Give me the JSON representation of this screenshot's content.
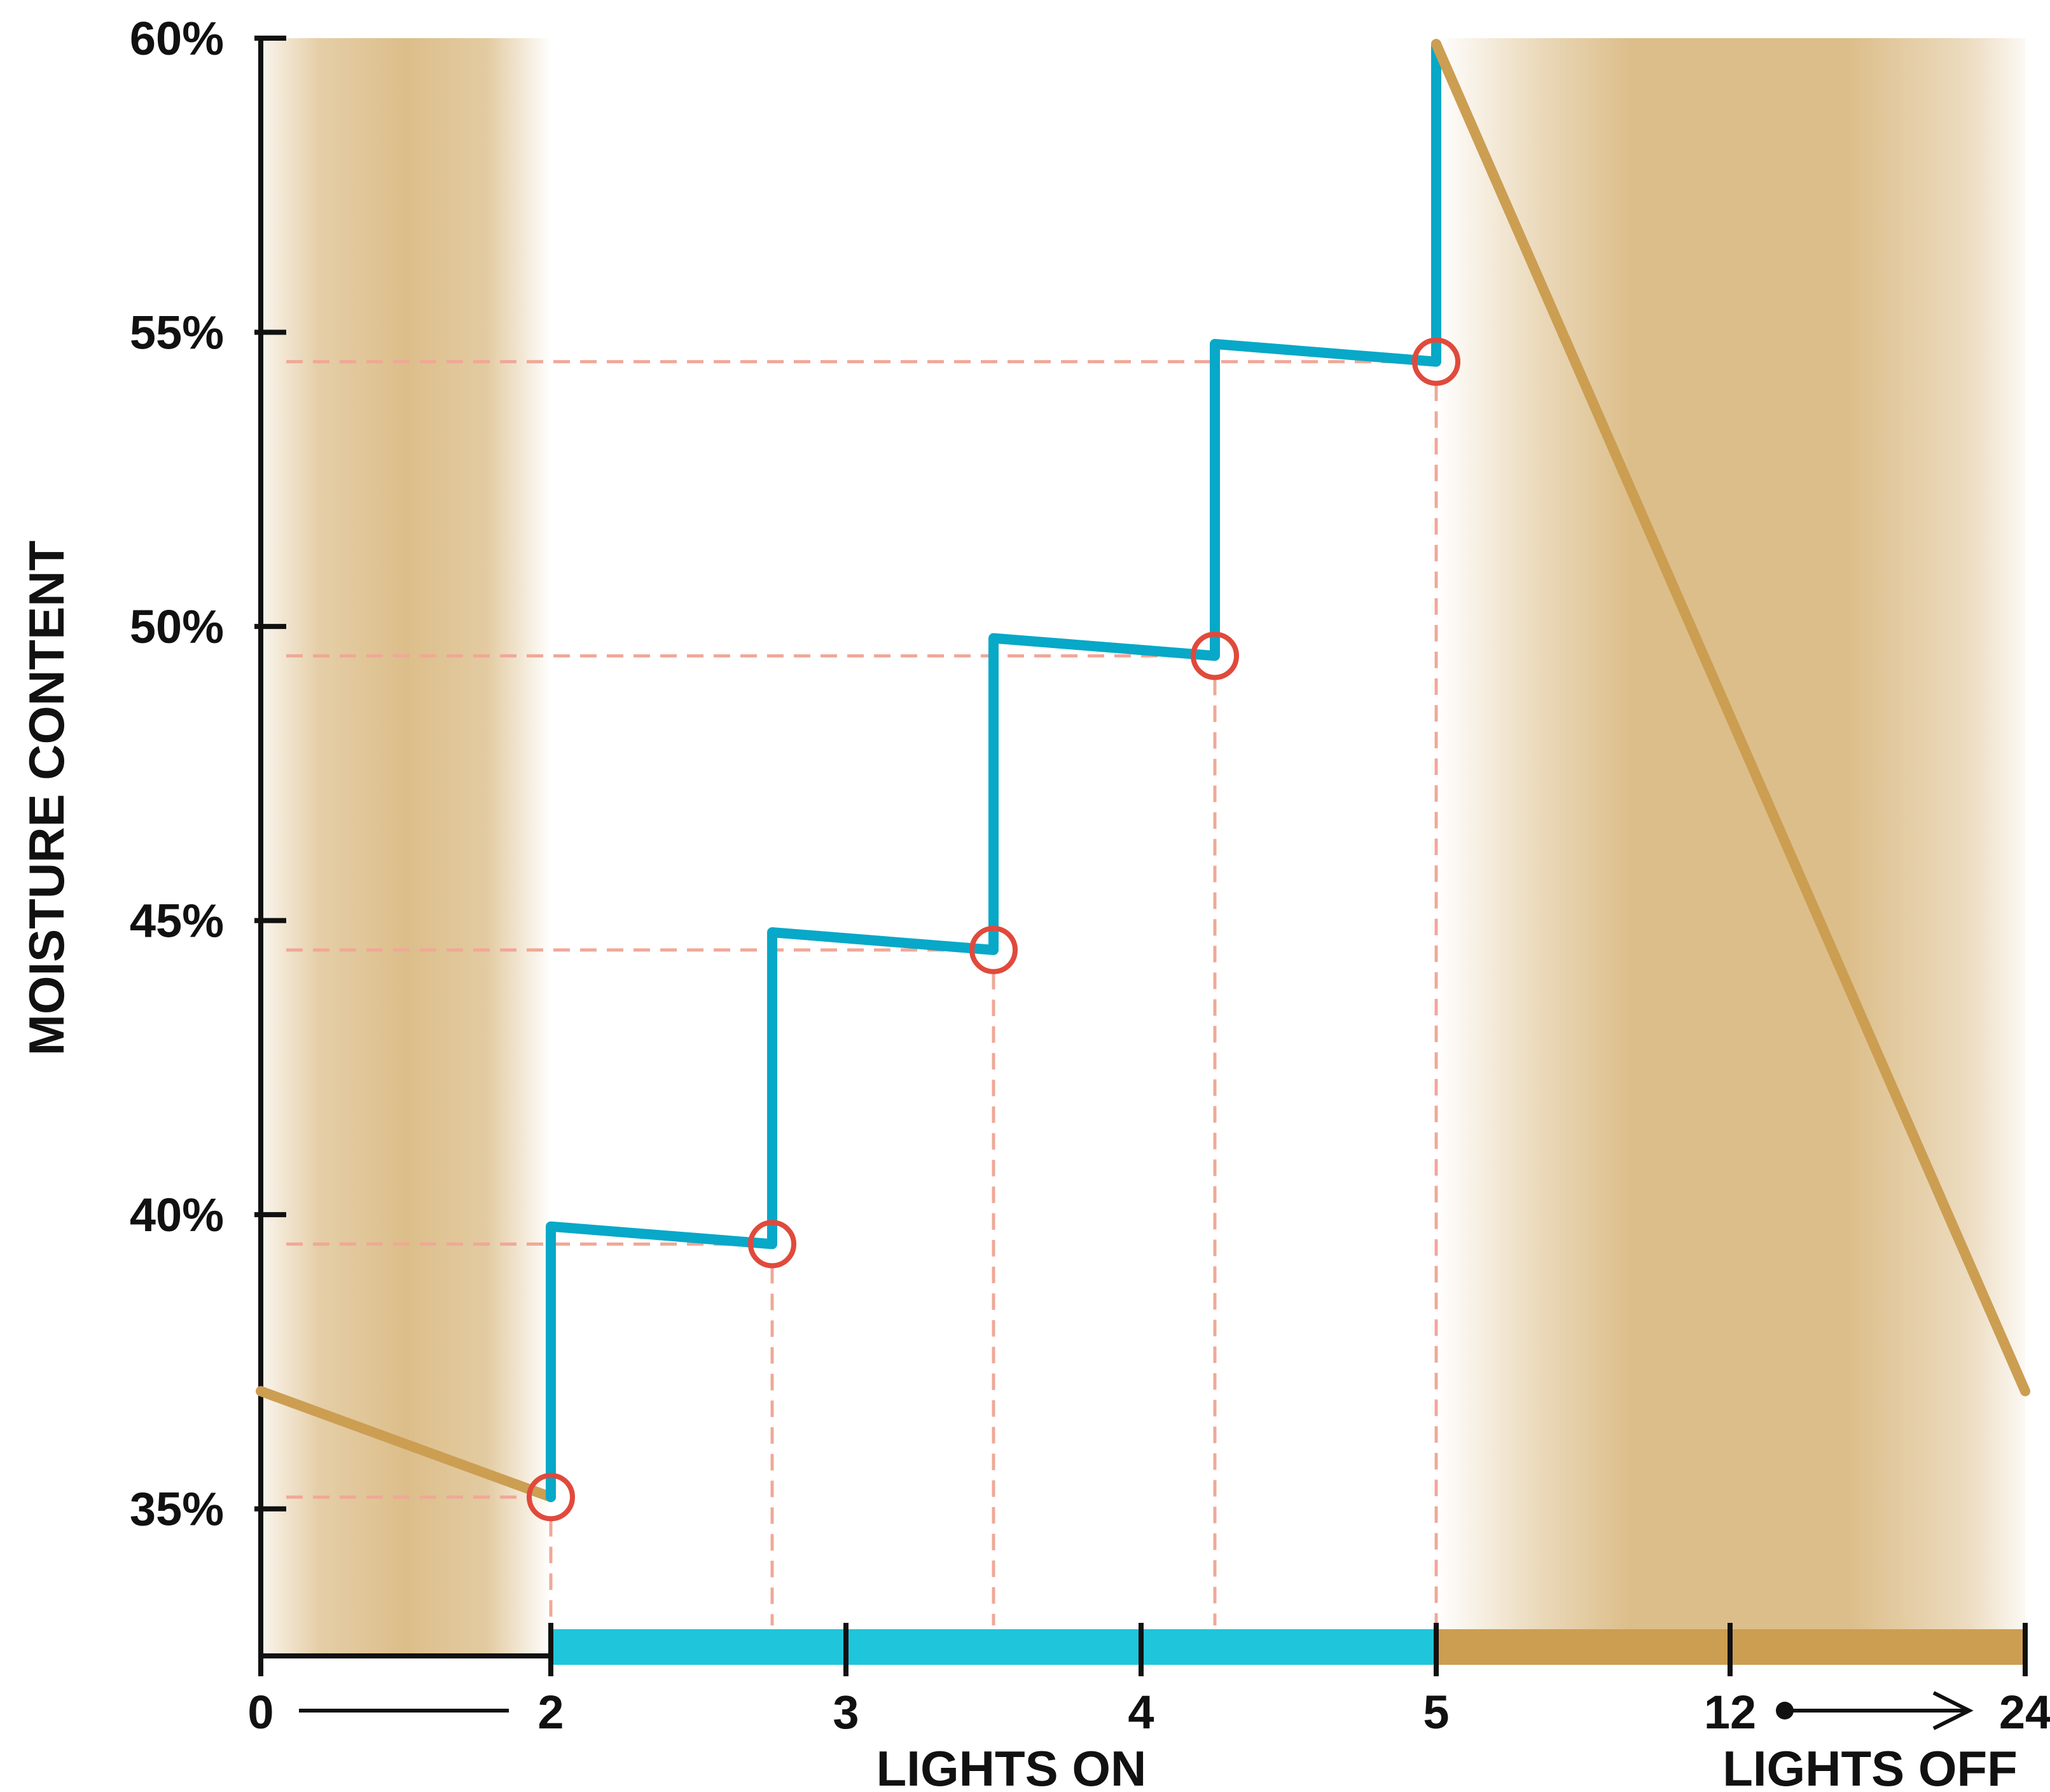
{
  "chart_data": {
    "type": "line",
    "title": "",
    "ylabel": "MOISTURE CONTENT",
    "ylim": [
      32.5,
      60
    ],
    "y_ticks": [
      35,
      40,
      45,
      50,
      55,
      60
    ],
    "y_tick_labels": [
      "35%",
      "40%",
      "45%",
      "50%",
      "55%",
      "60%"
    ],
    "x_ticks": [
      0,
      2,
      3,
      4,
      5,
      12,
      24
    ],
    "x_tick_labels": [
      "0",
      "2",
      "3",
      "4",
      "5",
      "12",
      "24"
    ],
    "x_groups": [
      {
        "label": "LIGHTS ON",
        "from": 2,
        "to": 5
      },
      {
        "label": "LIGHTS OFF",
        "from": 5,
        "to": 24
      }
    ],
    "grid": false,
    "legend": "none",
    "series": [
      {
        "role": "dryback-before",
        "color": "#cc9e52",
        "points": [
          [
            0,
            37
          ],
          [
            2,
            35.2
          ]
        ]
      },
      {
        "role": "irrigation-steps",
        "color": "#07a8c8",
        "points": [
          [
            2,
            35.2
          ],
          [
            2,
            39.8
          ],
          [
            2.75,
            39.5
          ],
          [
            2.75,
            44.8
          ],
          [
            3.5,
            44.5
          ],
          [
            3.5,
            49.8
          ],
          [
            4.25,
            49.5
          ],
          [
            4.25,
            54.8
          ],
          [
            5,
            54.5
          ],
          [
            5,
            59.9
          ]
        ]
      },
      {
        "role": "dryback-after",
        "color": "#cc9e52",
        "points": [
          [
            5,
            59.9
          ],
          [
            24,
            37
          ]
        ]
      }
    ],
    "markers": [
      {
        "x": 2,
        "y": 35.2
      },
      {
        "x": 2.75,
        "y": 39.5
      },
      {
        "x": 3.5,
        "y": 44.5
      },
      {
        "x": 4.25,
        "y": 49.5
      },
      {
        "x": 5,
        "y": 54.5
      }
    ],
    "bands": {
      "lights_off_color": "#dcbe8a",
      "lights_on_bar_color": "#1fc5da",
      "lights_off_bar_color": "#cc9e52",
      "marker_color": "#e04a3c",
      "guide_color": "#f0a898"
    }
  }
}
